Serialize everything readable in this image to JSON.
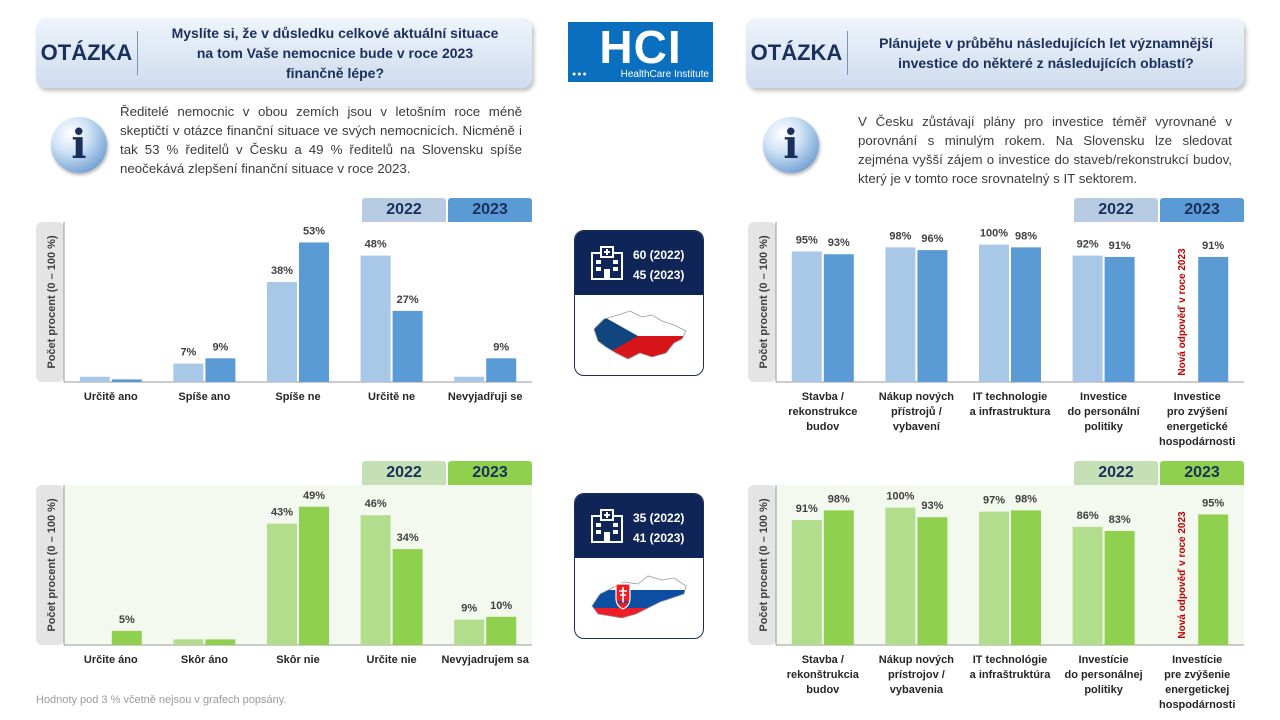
{
  "question_left": {
    "label": "OTÁZKA",
    "lines": [
      "Myslíte si, že v důsledku celkové aktuální situace",
      "na tom Vaše nemocnice bude v roce 2023",
      "finančně lépe?"
    ]
  },
  "question_right": {
    "label": "OTÁZKA",
    "lines": [
      "Plánujete v průběhu následujících let významnější",
      "investice do některé z následujících oblastí?"
    ]
  },
  "logo": {
    "text": "HCI",
    "subtitle": "HealthCare Institute",
    "dots": "●●●"
  },
  "info_left": "Ředitelé nemocnic v obou zemích jsou v letošním roce méně skeptičtí v otázce finanční situace ve svých nemocnicích. Nicméně i tak 53 % ředitelů v Česku a 49 % ředitelů na Slovensku spíše neočekává zlepšení finanční situace v roce 2023.",
  "info_right": "V Česku zůstávají plány pro investice téměř vyrovnané v porovnání s minulým rokem. Na Slovensku lze sledovat zejména vyšší zájem o investice do staveb/rekonstrukcí budov, který je v tomto roce srovnatelný s IT sektorem.",
  "info_icon": "i",
  "legend": {
    "y2022": "2022",
    "y2023": "2023"
  },
  "colors": {
    "cz_2022": "#a9c8e8",
    "cz_2023": "#5b9bd5",
    "sk_2022": "#b2dd8c",
    "sk_2023": "#8fd14f",
    "tab_cz_2022": "#b7cce3",
    "tab_cz_2023": "#5b9bd5",
    "tab_sk_2022": "#c5e0b4",
    "tab_sk_2023": "#8fd14f"
  },
  "cards": {
    "cz": {
      "n2022": "60 (2022)",
      "n2023": "45 (2023)"
    },
    "sk": {
      "n2022": "35 (2022)",
      "n2023": "41 (2023)"
    }
  },
  "footnote": "Hodnoty pod 3 % včetně nejsou v grafech popsány.",
  "chart_data": [
    {
      "id": "cz_finance",
      "type": "bar",
      "ylabel": "Počet procent   (0 – 100 %)",
      "categories": [
        "Určitě ano",
        "Spíše ano",
        "Spíše ne",
        "Určitě ne",
        "Nevyjadřuji se"
      ],
      "series": [
        {
          "name": "2022",
          "values": [
            2,
            7,
            38,
            48,
            2
          ],
          "labels": [
            "",
            "7%",
            "38%",
            "48%",
            ""
          ]
        },
        {
          "name": "2023",
          "values": [
            1,
            9,
            53,
            27,
            9
          ],
          "labels": [
            "",
            "9%",
            "53%",
            "27%",
            "9%"
          ]
        }
      ],
      "ylim": [
        0,
        60
      ]
    },
    {
      "id": "sk_finance",
      "type": "bar",
      "ylabel": "Počet procent   (0 – 100 %)",
      "categories": [
        "Určite áno",
        "Skôr áno",
        "Skôr nie",
        "Určite nie",
        "Nevyjadrujem sa"
      ],
      "series": [
        {
          "name": "2022",
          "values": [
            0,
            2,
            43,
            46,
            9
          ],
          "labels": [
            "",
            "",
            "43%",
            "46%",
            "9%"
          ]
        },
        {
          "name": "2023",
          "values": [
            5,
            2,
            49,
            34,
            10
          ],
          "labels": [
            "5%",
            "",
            "49%",
            "34%",
            "10%"
          ]
        }
      ],
      "ylim": [
        0,
        56
      ]
    },
    {
      "id": "cz_invest",
      "type": "bar",
      "ylabel": "Počet procent   (0 – 100 %)",
      "categories": [
        [
          "Stavba /",
          "rekonstrukce",
          "budov"
        ],
        [
          "Nákup nových",
          "přístrojů /",
          "vybavení"
        ],
        [
          "IT technologie",
          "a infrastruktura"
        ],
        [
          "Investice",
          "do personální",
          "politiky"
        ],
        [
          "Investice",
          "pro zvýšení",
          "energetické",
          "hospodárnosti"
        ]
      ],
      "series": [
        {
          "name": "2022",
          "values": [
            95,
            98,
            100,
            92,
            null
          ],
          "labels": [
            "95%",
            "98%",
            "100%",
            "92%",
            ""
          ]
        },
        {
          "name": "2023",
          "values": [
            93,
            96,
            98,
            91,
            91
          ],
          "labels": [
            "93%",
            "96%",
            "98%",
            "91%",
            "91%"
          ]
        }
      ],
      "new_answer_note": "Nová odpověď v roce 2023",
      "ylim": [
        0,
        115
      ]
    },
    {
      "id": "sk_invest",
      "type": "bar",
      "ylabel": "Počet procent   (0 – 100 %)",
      "categories": [
        [
          "Stavba /",
          "rekonštrukcia",
          "budov"
        ],
        [
          "Nákup nových",
          "prístrojov /",
          "vybavenia"
        ],
        [
          "IT technológie",
          "a infraštruktúra"
        ],
        [
          "Investície",
          "do personálnej",
          "politiky"
        ],
        [
          "Investície",
          "pre zvýšenie",
          "energetickej",
          "hospodárnosti"
        ]
      ],
      "series": [
        {
          "name": "2022",
          "values": [
            91,
            100,
            97,
            86,
            null
          ],
          "labels": [
            "91%",
            "100%",
            "97%",
            "86%",
            ""
          ]
        },
        {
          "name": "2023",
          "values": [
            98,
            93,
            98,
            83,
            95
          ],
          "labels": [
            "98%",
            "93%",
            "98%",
            "83%",
            "95%"
          ]
        }
      ],
      "new_answer_note": "Nová odpověď v roce 2023",
      "ylim": [
        0,
        115
      ]
    }
  ]
}
